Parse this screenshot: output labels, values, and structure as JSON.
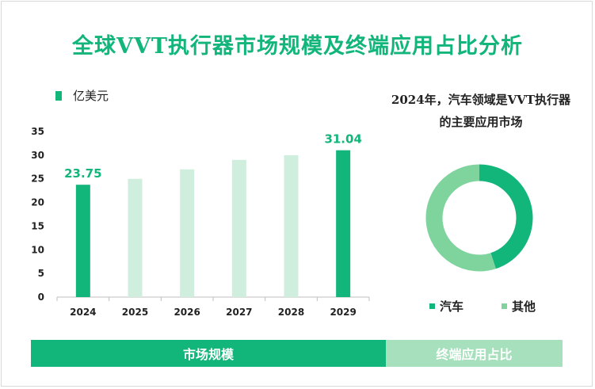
{
  "title": "全球VVT执行器市场规模及终端应用占比分析",
  "unit_legend": "亿美元",
  "colors": {
    "accent": "#12b57a",
    "light_bar": "#cfeedd",
    "donut_main": "#12b57a",
    "donut_other": "#7fd49e",
    "bottom_left_bg": "#12b57a",
    "bottom_right_bg": "#a6e0bc"
  },
  "chart_data": [
    {
      "type": "bar",
      "categories": [
        "2024",
        "2025",
        "2026",
        "2027",
        "2028",
        "2029"
      ],
      "values": [
        23.75,
        25,
        27,
        29,
        30,
        31.04
      ],
      "data_labels": [
        "23.75",
        "",
        "",
        "",
        "",
        "31.04"
      ],
      "highlighted": [
        true,
        false,
        false,
        false,
        false,
        true
      ],
      "ylim": [
        0,
        35
      ],
      "yticks": [
        0,
        5,
        10,
        15,
        20,
        25,
        30,
        35
      ],
      "grid": false
    },
    {
      "type": "pie",
      "title": "2024年，汽车领域是VVT执行器的主要应用市场",
      "title_lines": [
        "2024年，汽车领域是VVT执行器",
        "的主要应用市场"
      ],
      "labels": [
        "汽车",
        "其他"
      ],
      "values": [
        45,
        55
      ],
      "donut": true,
      "legend_position": "bottom"
    }
  ],
  "footer": {
    "left_label": "市场规模",
    "right_label": "终端应用占比"
  }
}
